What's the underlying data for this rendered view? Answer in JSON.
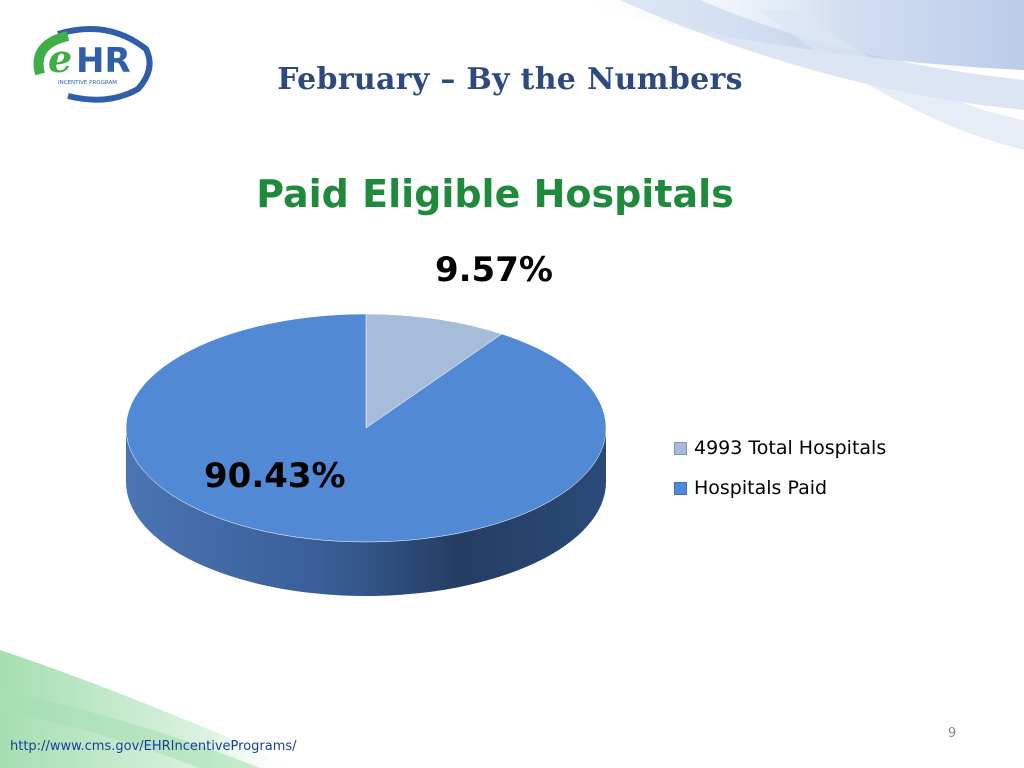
{
  "header": {
    "logo_text": "eHR",
    "logo_subtext": "INCENTIVE PROGRAM",
    "title": "February – By the Numbers"
  },
  "chart_data": {
    "type": "pie",
    "title": "Paid Eligible Hospitals",
    "slices": [
      {
        "label": "4993 Total Hospitals",
        "value": 9.57,
        "display": "9.57%",
        "color": "#a7bcdb"
      },
      {
        "label": "Hospitals Paid",
        "value": 90.43,
        "display": "90.43%",
        "color": "#5289d4"
      }
    ],
    "legend_position": "right",
    "style": "3d"
  },
  "footer": {
    "page_number": "9",
    "url": "http://www.cms.gov/EHRIncentivePrograms/"
  }
}
